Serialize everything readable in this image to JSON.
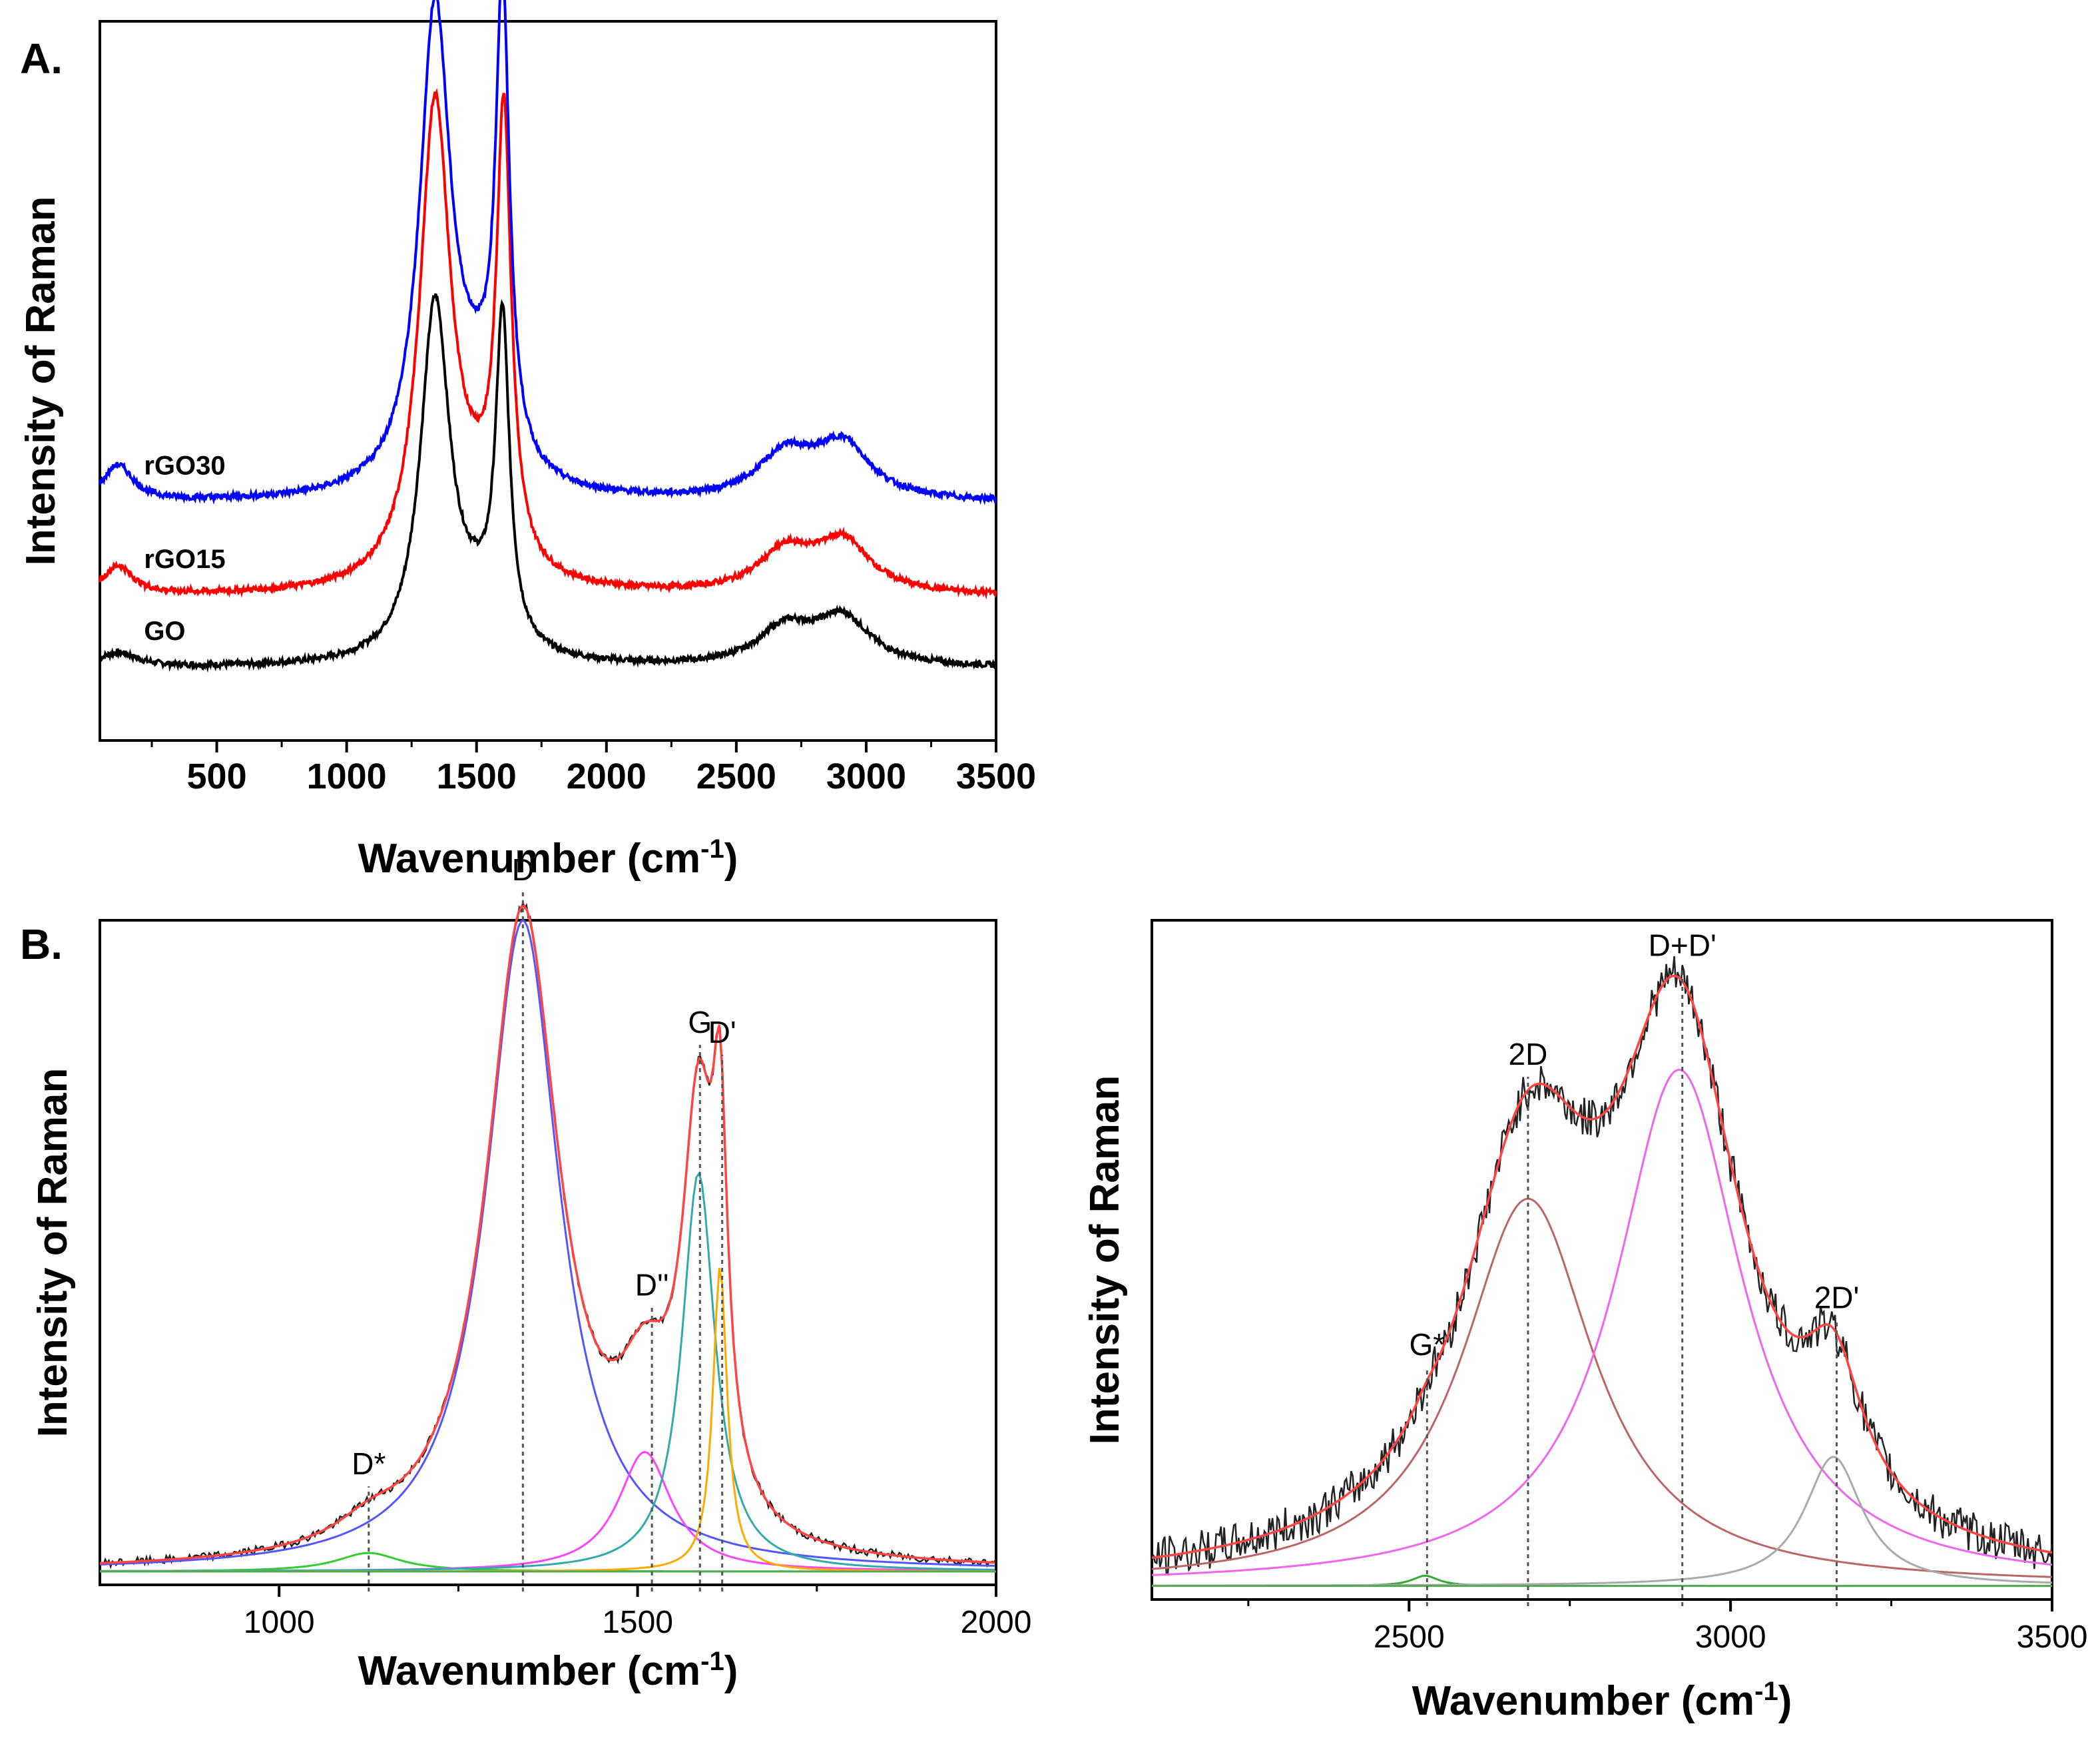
{
  "figure": {
    "panel_a_label": "A.",
    "panel_b_label": "B."
  },
  "chart_data": [
    {
      "id": "A",
      "type": "line",
      "xlabel": "Wavenumber (cm-1)",
      "ylabel": "Intensity of Raman",
      "xlim": [
        50,
        3500
      ],
      "ylim": [
        0,
        1
      ],
      "x_ticks": [
        500,
        1000,
        1500,
        2000,
        2500,
        3000,
        3500
      ],
      "series": [
        {
          "name": "GO",
          "color": "#000000",
          "offset": 0.1,
          "peaks": [
            {
              "center": 1340,
              "height": 0.49,
              "width": 68
            },
            {
              "center": 1600,
              "height": 0.44,
              "width": 32
            },
            {
              "center": 1500,
              "height": 0.06,
              "width": 120
            },
            {
              "center": 2690,
              "height": 0.05,
              "width": 130
            },
            {
              "center": 2910,
              "height": 0.065,
              "width": 130
            },
            {
              "center": 120,
              "height": 0.02,
              "width": 90
            }
          ]
        },
        {
          "name": "rGO15",
          "color": "#ff0000",
          "offset": 0.2,
          "peaks": [
            {
              "center": 1340,
              "height": 0.66,
              "width": 72
            },
            {
              "center": 1605,
              "height": 0.61,
              "width": 34
            },
            {
              "center": 1500,
              "height": 0.08,
              "width": 120
            },
            {
              "center": 2690,
              "height": 0.055,
              "width": 130
            },
            {
              "center": 2910,
              "height": 0.07,
              "width": 130
            },
            {
              "center": 120,
              "height": 0.04,
              "width": 70
            }
          ]
        },
        {
          "name": "rGO30",
          "color": "#0000ff",
          "offset": 0.33,
          "peaks": [
            {
              "center": 1340,
              "height": 0.66,
              "width": 72
            },
            {
              "center": 1600,
              "height": 0.64,
              "width": 32
            },
            {
              "center": 1500,
              "height": 0.1,
              "width": 120
            },
            {
              "center": 2690,
              "height": 0.06,
              "width": 130
            },
            {
              "center": 2910,
              "height": 0.075,
              "width": 130
            },
            {
              "center": 120,
              "height": 0.05,
              "width": 70
            }
          ]
        }
      ]
    },
    {
      "id": "B1",
      "type": "line",
      "xlabel": "Wavenumber (cm-1)",
      "ylabel": "Intensity of Raman",
      "xlim": [
        750,
        2000
      ],
      "ylim": [
        0,
        1
      ],
      "x_ticks": [
        1000,
        1500,
        2000
      ],
      "baseline": 0.02,
      "components": [
        {
          "name": "D*",
          "center": 1125,
          "height": 0.028,
          "width": 55,
          "color": "#33cc33"
        },
        {
          "name": "D",
          "center": 1340,
          "height": 0.98,
          "width": 62,
          "color": "#5555ff"
        },
        {
          "name": "D''",
          "center": 1510,
          "height": 0.18,
          "width": 45,
          "color": "#ff44ff"
        },
        {
          "name": "G",
          "center": 1585,
          "height": 0.6,
          "width": 28,
          "color": "#33aaaa"
        },
        {
          "name": "D'",
          "center": 1615,
          "height": 0.46,
          "width": 12,
          "color": "#ffaa00"
        }
      ],
      "peak_labels": [
        {
          "text": "D*",
          "x": 1125
        },
        {
          "text": "D",
          "x": 1340
        },
        {
          "text": "D''",
          "x": 1520
        },
        {
          "text": "G",
          "x": 1587
        },
        {
          "text": "D'",
          "x": 1618
        }
      ]
    },
    {
      "id": "B2",
      "type": "line",
      "xlabel": "Wavenumber (cm-1)",
      "ylabel": "Intensity of Raman",
      "xlim": [
        2100,
        3500
      ],
      "ylim": [
        0,
        1
      ],
      "x_ticks": [
        2500,
        3000,
        3500
      ],
      "baseline": 0.02,
      "components": [
        {
          "name": "G*",
          "center": 2525,
          "height": 0.015,
          "width": 25,
          "color": "#33aa33"
        },
        {
          "name": "2D",
          "center": 2685,
          "height": 0.57,
          "width": 125,
          "color": "#bb6666"
        },
        {
          "name": "D+D'",
          "center": 2920,
          "height": 0.76,
          "width": 120,
          "color": "#ee66ee"
        },
        {
          "name": "2D'",
          "center": 3160,
          "height": 0.19,
          "width": 55,
          "color": "#aaaaaa"
        }
      ],
      "peak_labels": [
        {
          "text": "G*",
          "x": 2528
        },
        {
          "text": "2D",
          "x": 2685
        },
        {
          "text": "D+D'",
          "x": 2925
        },
        {
          "text": "2D'",
          "x": 3165
        }
      ]
    }
  ]
}
